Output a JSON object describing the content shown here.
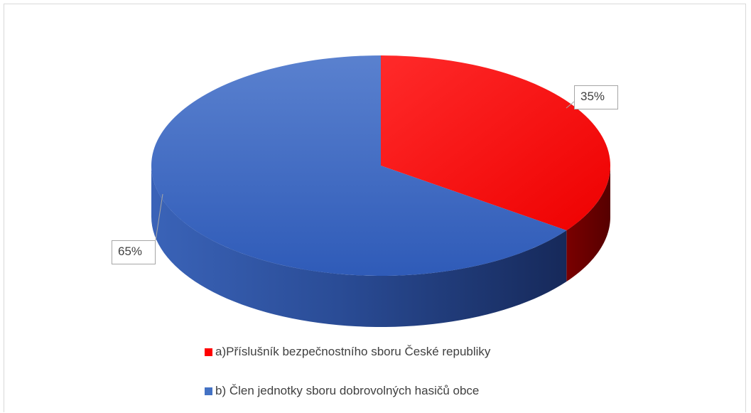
{
  "chart_data": {
    "type": "pie",
    "style": "3d",
    "title": "",
    "categories": [
      "a)Příslušník bezpečnostního sboru České republiky",
      "b) Člen jednotky sboru dobrovolných hasičů obce"
    ],
    "values": [
      35,
      65
    ],
    "unit": "%",
    "data_labels": [
      "35%",
      "65%"
    ],
    "colors": [
      "#ff0000",
      "#4472c4"
    ],
    "legend_position": "bottom",
    "start_angle": "top, clockwise"
  }
}
